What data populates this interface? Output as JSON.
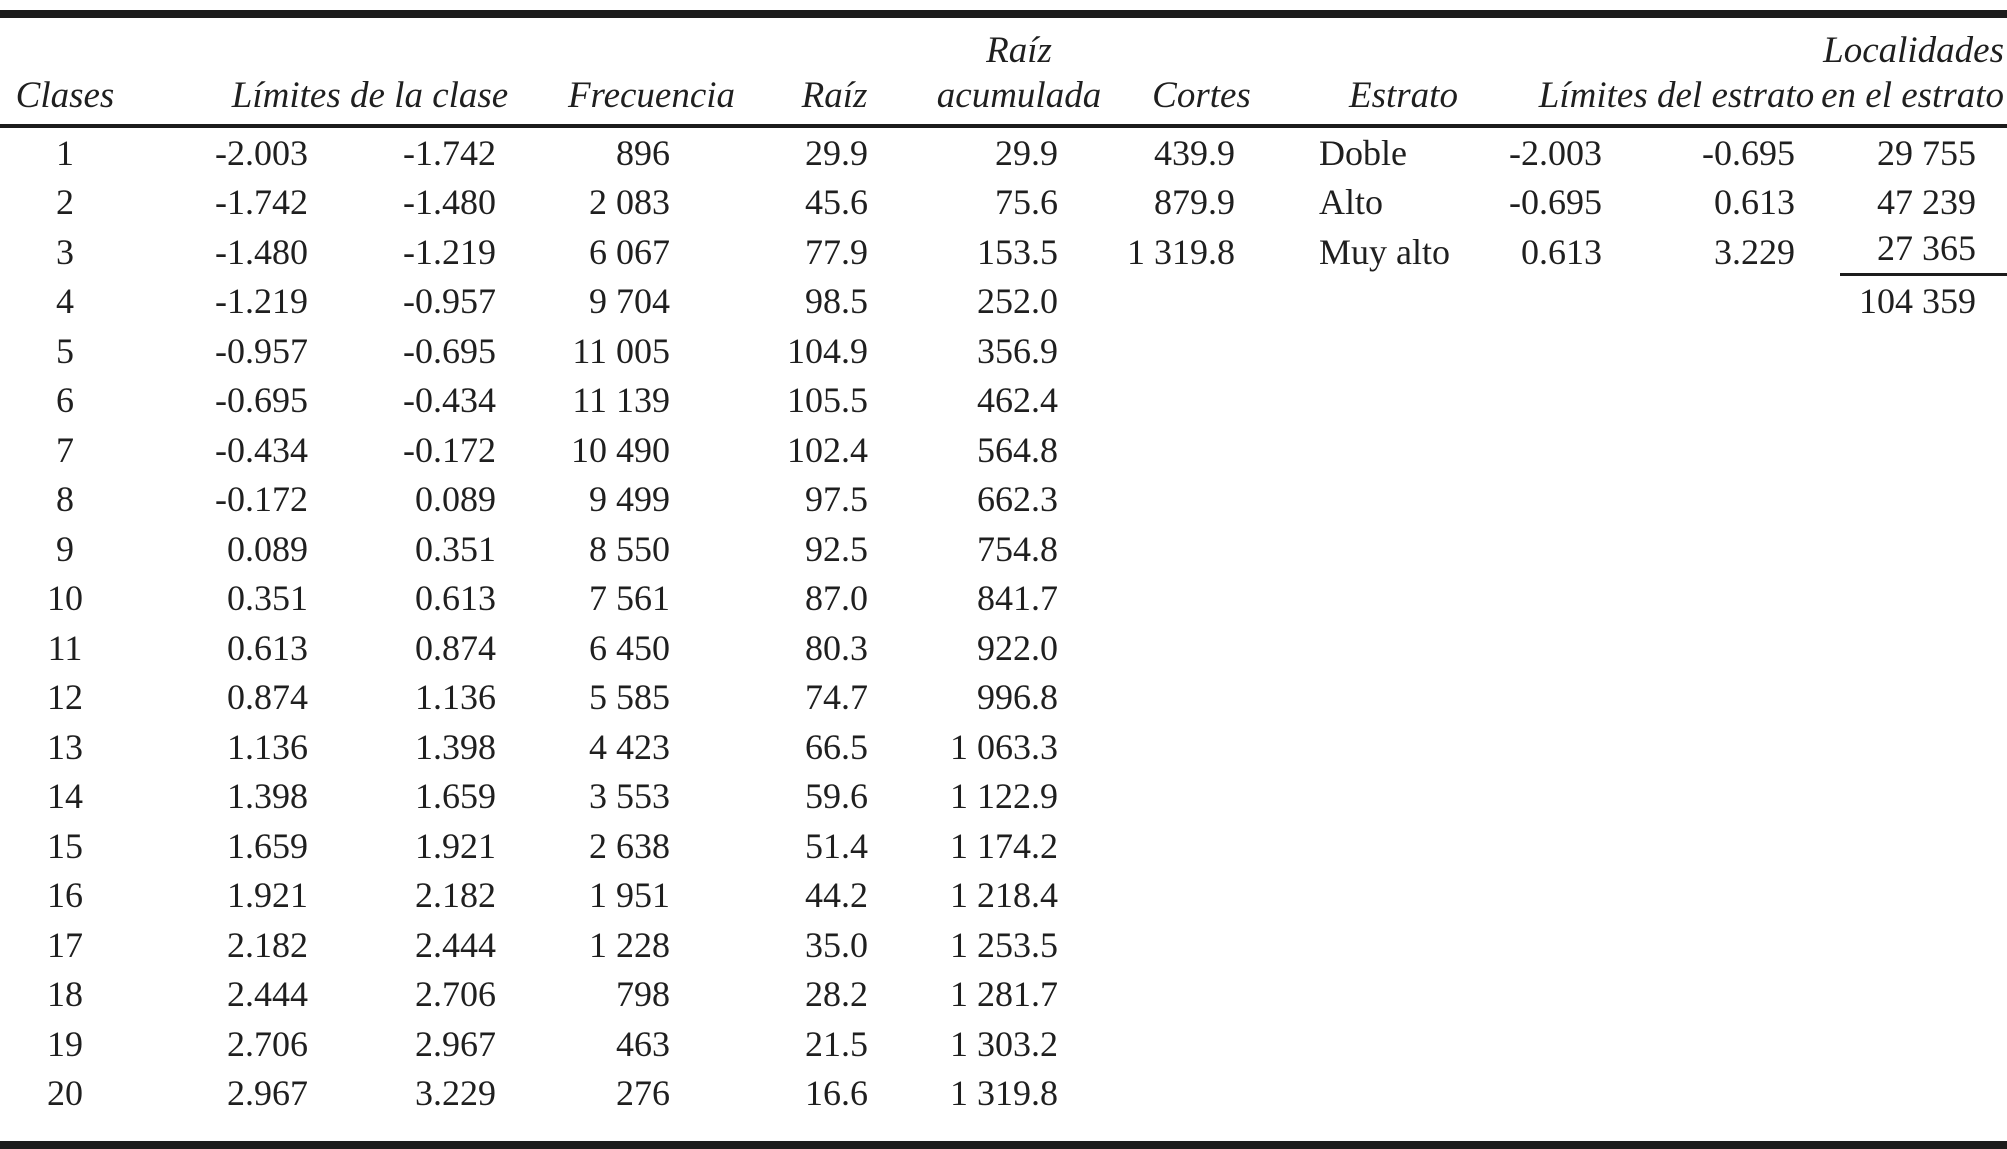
{
  "page": {
    "background_color": "#ffffff",
    "rule_color": "#1c1c1c",
    "text_color": "#1f1f1f"
  },
  "table": {
    "headers": {
      "clases": "Clases",
      "limites_clase": "Límites de la clase",
      "frecuencia": "Frecuencia",
      "raiz": "Raíz",
      "raiz_acumulada_1": "Raíz",
      "raiz_acumulada_2": "acumulada",
      "cortes": "Cortes",
      "estrato": "Estrato",
      "limites_estrato": "Límites del estrato",
      "localidades_1": "Localidades",
      "localidades_2": "en el estrato"
    },
    "rows": [
      {
        "clase": "1",
        "lim_inf": "-2.003",
        "lim_sup": "-1.742",
        "frecuencia": "896",
        "raiz": "29.9",
        "raiz_acumulada": "29.9"
      },
      {
        "clase": "2",
        "lim_inf": "-1.742",
        "lim_sup": "-1.480",
        "frecuencia": "2 083",
        "raiz": "45.6",
        "raiz_acumulada": "75.6"
      },
      {
        "clase": "3",
        "lim_inf": "-1.480",
        "lim_sup": "-1.219",
        "frecuencia": "6 067",
        "raiz": "77.9",
        "raiz_acumulada": "153.5"
      },
      {
        "clase": "4",
        "lim_inf": "-1.219",
        "lim_sup": "-0.957",
        "frecuencia": "9 704",
        "raiz": "98.5",
        "raiz_acumulada": "252.0"
      },
      {
        "clase": "5",
        "lim_inf": "-0.957",
        "lim_sup": "-0.695",
        "frecuencia": "11 005",
        "raiz": "104.9",
        "raiz_acumulada": "356.9"
      },
      {
        "clase": "6",
        "lim_inf": "-0.695",
        "lim_sup": "-0.434",
        "frecuencia": "11 139",
        "raiz": "105.5",
        "raiz_acumulada": "462.4"
      },
      {
        "clase": "7",
        "lim_inf": "-0.434",
        "lim_sup": "-0.172",
        "frecuencia": "10 490",
        "raiz": "102.4",
        "raiz_acumulada": "564.8"
      },
      {
        "clase": "8",
        "lim_inf": "-0.172",
        "lim_sup": "0.089",
        "frecuencia": "9 499",
        "raiz": "97.5",
        "raiz_acumulada": "662.3"
      },
      {
        "clase": "9",
        "lim_inf": "0.089",
        "lim_sup": "0.351",
        "frecuencia": "8 550",
        "raiz": "92.5",
        "raiz_acumulada": "754.8"
      },
      {
        "clase": "10",
        "lim_inf": "0.351",
        "lim_sup": "0.613",
        "frecuencia": "7 561",
        "raiz": "87.0",
        "raiz_acumulada": "841.7"
      },
      {
        "clase": "11",
        "lim_inf": "0.613",
        "lim_sup": "0.874",
        "frecuencia": "6 450",
        "raiz": "80.3",
        "raiz_acumulada": "922.0"
      },
      {
        "clase": "12",
        "lim_inf": "0.874",
        "lim_sup": "1.136",
        "frecuencia": "5 585",
        "raiz": "74.7",
        "raiz_acumulada": "996.8"
      },
      {
        "clase": "13",
        "lim_inf": "1.136",
        "lim_sup": "1.398",
        "frecuencia": "4 423",
        "raiz": "66.5",
        "raiz_acumulada": "1 063.3"
      },
      {
        "clase": "14",
        "lim_inf": "1.398",
        "lim_sup": "1.659",
        "frecuencia": "3 553",
        "raiz": "59.6",
        "raiz_acumulada": "1 122.9"
      },
      {
        "clase": "15",
        "lim_inf": "1.659",
        "lim_sup": "1.921",
        "frecuencia": "2 638",
        "raiz": "51.4",
        "raiz_acumulada": "1 174.2"
      },
      {
        "clase": "16",
        "lim_inf": "1.921",
        "lim_sup": "2.182",
        "frecuencia": "1 951",
        "raiz": "44.2",
        "raiz_acumulada": "1 218.4"
      },
      {
        "clase": "17",
        "lim_inf": "2.182",
        "lim_sup": "2.444",
        "frecuencia": "1 228",
        "raiz": "35.0",
        "raiz_acumulada": "1 253.5"
      },
      {
        "clase": "18",
        "lim_inf": "2.444",
        "lim_sup": "2.706",
        "frecuencia": "798",
        "raiz": "28.2",
        "raiz_acumulada": "1 281.7"
      },
      {
        "clase": "19",
        "lim_inf": "2.706",
        "lim_sup": "2.967",
        "frecuencia": "463",
        "raiz": "21.5",
        "raiz_acumulada": "1 303.2"
      },
      {
        "clase": "20",
        "lim_inf": "2.967",
        "lim_sup": "3.229",
        "frecuencia": "276",
        "raiz": "16.6",
        "raiz_acumulada": "1 319.8"
      }
    ],
    "estratos": [
      {
        "corte": "439.9",
        "nombre": "Doble",
        "lim_inf": "-2.003",
        "lim_sup": "-0.695",
        "localidades": "29 755"
      },
      {
        "corte": "879.9",
        "nombre": "Alto",
        "lim_inf": "-0.695",
        "lim_sup": "0.613",
        "localidades": "47 239"
      },
      {
        "corte": "1 319.8",
        "nombre": "Muy alto",
        "lim_inf": "0.613",
        "lim_sup": "3.229",
        "localidades": "27 365"
      }
    ],
    "total_localidades": "104 359"
  }
}
